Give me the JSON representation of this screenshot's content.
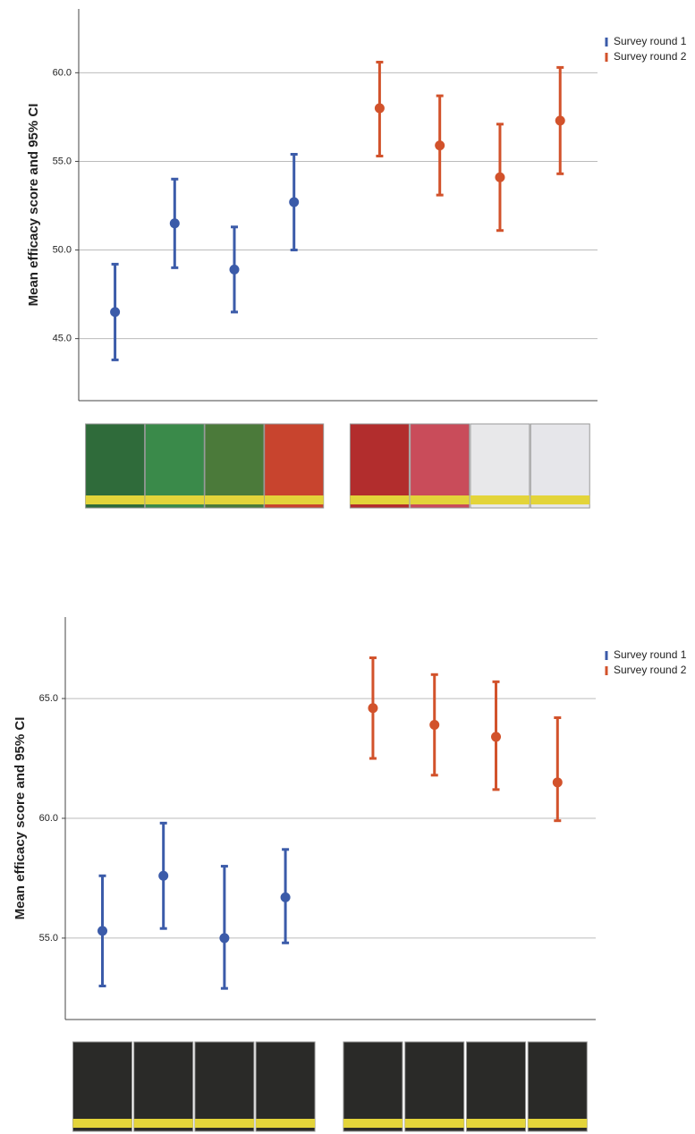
{
  "chart_data": [
    {
      "type": "errorbar",
      "y_label": "Mean efficacy score and 95% CI",
      "categories": [
        null,
        null,
        null,
        null,
        null,
        null,
        null,
        null
      ],
      "ylim": [
        41.5,
        63.6
      ],
      "yticks": [
        {
          "value": 45,
          "label": "45.0"
        },
        {
          "value": 50,
          "label": "50.0"
        },
        {
          "value": 55,
          "label": "55.0"
        },
        {
          "value": 60,
          "label": "60.0"
        }
      ],
      "grid": true,
      "legend": "upper right",
      "series": [
        {
          "name": "Survey round 1",
          "color": "#3b5ba9",
          "values": [
            46.5,
            51.5,
            48.9,
            52.7,
            null,
            null,
            null,
            null
          ],
          "lower": [
            43.8,
            49.0,
            46.5,
            50.0,
            null,
            null,
            null,
            null
          ],
          "upper": [
            49.2,
            54.0,
            51.3,
            55.4,
            null,
            null,
            null,
            null
          ]
        },
        {
          "name": "Survey round 2",
          "color": "#d2522b",
          "values": [
            null,
            null,
            null,
            null,
            58.0,
            55.9,
            54.1,
            57.3
          ],
          "lower": [
            null,
            null,
            null,
            null,
            55.3,
            53.1,
            51.1,
            54.3
          ],
          "upper": [
            null,
            null,
            null,
            null,
            60.6,
            58.7,
            57.1,
            60.3
          ]
        }
      ]
    },
    {
      "type": "errorbar",
      "y_label": "Mean efficacy score and 95% CI",
      "categories": [
        null,
        null,
        null,
        null,
        null,
        null,
        null,
        null
      ],
      "ylim": [
        51.6,
        68.4
      ],
      "yticks": [
        {
          "value": 55,
          "label": "55.0"
        },
        {
          "value": 60,
          "label": "60.0"
        },
        {
          "value": 65,
          "label": "65.0"
        }
      ],
      "grid": true,
      "legend": "upper right",
      "series": [
        {
          "name": "Survey round 1",
          "color": "#3b5ba9",
          "values": [
            55.3,
            57.6,
            55.0,
            56.7,
            null,
            null,
            null,
            null
          ],
          "lower": [
            53.0,
            55.4,
            52.9,
            54.8,
            null,
            null,
            null,
            null
          ],
          "upper": [
            57.6,
            59.8,
            58.0,
            58.7,
            null,
            null,
            null,
            null
          ]
        },
        {
          "name": "Survey round 2",
          "color": "#d2522b",
          "values": [
            null,
            null,
            null,
            null,
            64.6,
            63.9,
            63.4,
            61.5
          ],
          "lower": [
            null,
            null,
            null,
            null,
            62.5,
            61.8,
            61.2,
            59.9
          ],
          "upper": [
            null,
            null,
            null,
            null,
            66.7,
            66.0,
            65.7,
            64.2
          ]
        }
      ]
    }
  ]
}
